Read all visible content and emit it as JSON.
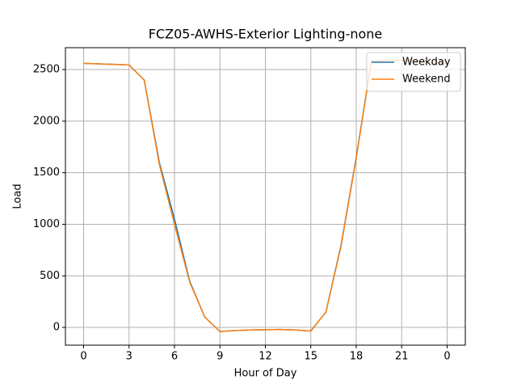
{
  "chart_data": {
    "type": "line",
    "title": "FCZ05-AWHS-Exterior Lighting-none",
    "x_label": "Hour of Day",
    "y_label": "Load",
    "x": [
      0,
      1,
      2,
      3,
      4,
      5,
      6,
      7,
      8,
      9,
      10,
      11,
      12,
      13,
      14,
      15,
      16,
      17,
      18,
      19,
      20,
      21,
      22,
      23,
      24
    ],
    "series": [
      {
        "name": "Weekday",
        "color": "#1f77b4",
        "values": [
          2560,
          2555,
          2550,
          2545,
          2400,
          1600,
          1050,
          450,
          100,
          -40,
          -30,
          -25,
          -22,
          -20,
          -25,
          -35,
          150,
          800,
          1650,
          2580,
          2590,
          2590,
          2580,
          2570,
          2560
        ]
      },
      {
        "name": "Weekend",
        "color": "#ff7f0e",
        "values": [
          2560,
          2555,
          2550,
          2545,
          2400,
          1580,
          1000,
          440,
          100,
          -40,
          -30,
          -25,
          -22,
          -20,
          -25,
          -35,
          150,
          790,
          1640,
          2580,
          2590,
          2590,
          2580,
          2570,
          2560
        ]
      }
    ],
    "xlim": [
      -1.2,
      25.2
    ],
    "xticks": [
      0,
      3,
      6,
      9,
      12,
      15,
      18,
      21,
      {
        "value": 24,
        "label": "0"
      }
    ],
    "ylim": [
      -172,
      2712
    ],
    "yticks": [
      0,
      500,
      1000,
      1500,
      2000,
      2500
    ],
    "grid": true,
    "legend": "upper right"
  }
}
